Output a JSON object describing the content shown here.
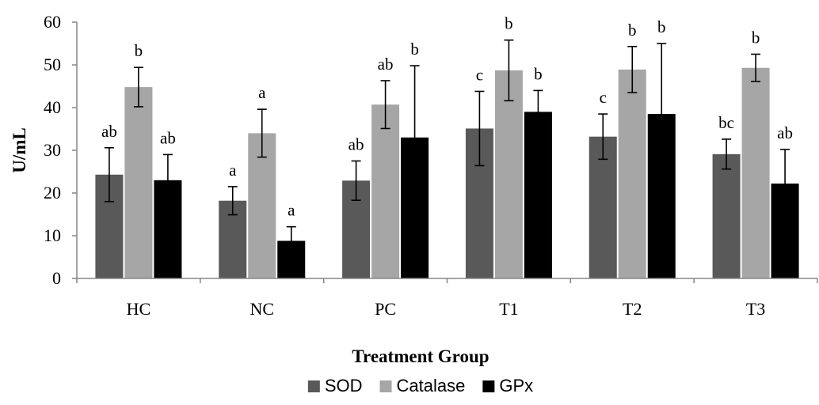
{
  "chart_data": {
    "type": "bar",
    "title": "",
    "xlabel": "Treatment Group",
    "ylabel": "U/mL",
    "ylim": [
      0,
      60
    ],
    "yticks": [
      0,
      10,
      20,
      30,
      40,
      50,
      60
    ],
    "grid": false,
    "legend_position": "bottom",
    "categories": [
      "HC",
      "NC",
      "PC",
      "T1",
      "T2",
      "T3"
    ],
    "series": [
      {
        "name": "SOD",
        "color": "#595959",
        "values": [
          24.3,
          18.2,
          22.9,
          35.1,
          33.2,
          29.1
        ],
        "error": [
          6.3,
          3.3,
          4.6,
          8.7,
          5.3,
          3.5
        ],
        "significance": [
          "ab",
          "a",
          "ab",
          "c",
          "c",
          "bc"
        ]
      },
      {
        "name": "Catalase",
        "color": "#a6a6a6",
        "values": [
          44.8,
          34.0,
          40.7,
          48.7,
          48.9,
          49.3
        ],
        "error": [
          4.6,
          5.6,
          5.6,
          7.1,
          5.4,
          3.2
        ],
        "significance": [
          "b",
          "a",
          "ab",
          "b",
          "b",
          "b"
        ]
      },
      {
        "name": "GPx",
        "color": "#000000",
        "values": [
          23.0,
          8.8,
          33.0,
          39.0,
          38.5,
          22.2
        ],
        "error": [
          6.0,
          3.3,
          16.8,
          5.0,
          16.5,
          8.0
        ],
        "significance": [
          "ab",
          "a",
          "b",
          "b",
          "b",
          "ab"
        ]
      }
    ]
  }
}
